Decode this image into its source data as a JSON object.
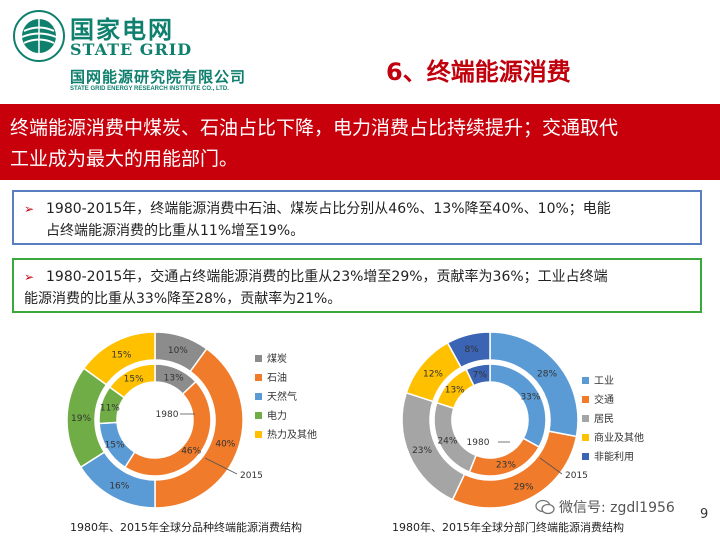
{
  "header": {
    "brand_cn": "国家电网",
    "brand_en": "STATE GRID",
    "institute_cn": "国网能源研究院有限公司",
    "institute_en": "STATE GRID ENERGY RESEARCH INSTITUTE CO., LTD.",
    "section_title": "6、终端能源消费"
  },
  "banner": {
    "line1": "终端能源消费中煤炭、石油占比下降，电力消费占比持续提升；交通取代",
    "line2": "工业成为最大的用能部门。"
  },
  "bullets": [
    {
      "line1": "1980-2015年，终端能源消费中石油、煤炭占比分别从46%、13%降至40%、10%；电能",
      "line2": "占终端能源消费的比重从11%增至19%。"
    },
    {
      "line1": "1980-2015年，交通占终端能源消费的比重从23%增至29%，贡献率为36%；工业占终端",
      "line2": "能源消费的比重从33%降至28%，贡献率为21%。"
    }
  ],
  "chart_data": [
    {
      "type": "donut",
      "caption": "1980年、2015年全球分品种终端能源消费结构",
      "inner_label": "1980",
      "outer_label": "2015",
      "categories": [
        "煤炭",
        "石油",
        "天然气",
        "电力",
        "热力及其他"
      ],
      "colors": [
        "#8c8c8c",
        "#f07b2a",
        "#5b9bd5",
        "#70ad47",
        "#ffc000"
      ],
      "series": [
        {
          "name": "1980",
          "ring": "inner",
          "values": [
            13,
            46,
            15,
            11,
            15
          ],
          "labels": [
            "13%",
            "46%",
            "15%",
            "11%",
            "15%"
          ]
        },
        {
          "name": "2015",
          "ring": "outer",
          "values": [
            10,
            40,
            16,
            19,
            15
          ],
          "labels": [
            "10%",
            "40%",
            "16%",
            "19%",
            "15%"
          ]
        }
      ]
    },
    {
      "type": "donut",
      "caption": "1980年、2015年全球分部门终端能源消费结构",
      "inner_label": "1980",
      "outer_label": "2015",
      "categories": [
        "工业",
        "交通",
        "居民",
        "商业及其他",
        "非能利用"
      ],
      "colors": [
        "#5b9bd5",
        "#f07b2a",
        "#a5a5a5",
        "#ffc000",
        "#3c64b4"
      ],
      "series": [
        {
          "name": "1980",
          "ring": "inner",
          "values": [
            33,
            23,
            24,
            13,
            7
          ],
          "labels": [
            "33%",
            "23%",
            "24%",
            "13%",
            "7%"
          ]
        },
        {
          "name": "2015",
          "ring": "outer",
          "values": [
            28,
            29,
            23,
            12,
            8
          ],
          "labels": [
            "28%",
            "29%",
            "23%",
            "12%",
            "8%"
          ]
        }
      ]
    }
  ],
  "watermark": "微信号: zgdl1956",
  "page_number": "9"
}
